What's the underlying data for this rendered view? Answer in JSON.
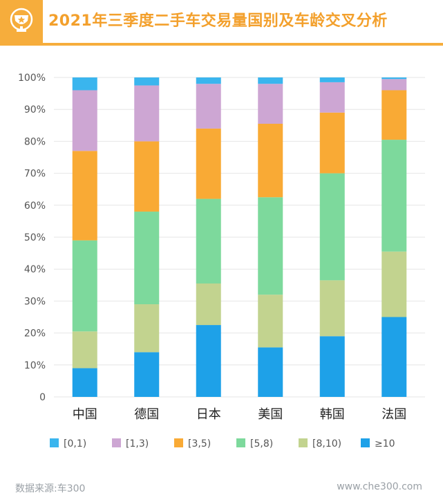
{
  "header": {
    "title": "2021年三季度二手车交易量国别及车龄交叉分析",
    "icon": "trophy-icon"
  },
  "footer": {
    "source": "数据来源:车300",
    "url": "www.che300.com"
  },
  "colors": {
    "accent": "#f6ad3c",
    "series": [
      "#3ab5ee",
      "#cda6d3",
      "#f9aa35",
      "#7dd99c",
      "#c2d38f",
      "#1ea1e8"
    ]
  },
  "chart_data": {
    "type": "bar",
    "stacked": true,
    "categories": [
      "中国",
      "德国",
      "日本",
      "美国",
      "韩国",
      "法国"
    ],
    "series": [
      {
        "name": "≥10",
        "values": [
          9,
          14,
          22.5,
          15.5,
          19,
          25
        ]
      },
      {
        "name": "[8,10)",
        "values": [
          11.5,
          15,
          13,
          16.5,
          17.5,
          20.5
        ]
      },
      {
        "name": "[5,8)",
        "values": [
          28.5,
          29,
          26.5,
          30.5,
          33.5,
          35
        ]
      },
      {
        "name": "[3,5)",
        "values": [
          28,
          22,
          22,
          23,
          19,
          15.5
        ]
      },
      {
        "name": "[1,3)",
        "values": [
          19,
          17.5,
          14,
          12.5,
          9.5,
          3.5
        ]
      },
      {
        "name": "[0,1)",
        "values": [
          4,
          2.5,
          2,
          2,
          1.5,
          0.5
        ]
      }
    ],
    "legend_order": [
      "[0,1)",
      "[1,3)",
      "[3,5)",
      "[5,8)",
      "[8,10)",
      "≥10"
    ],
    "ylim": [
      0,
      100
    ],
    "yticks": [
      "0",
      "10%",
      "20%",
      "30%",
      "40%",
      "50%",
      "60%",
      "70%",
      "80%",
      "90%",
      "100%"
    ],
    "grid": true,
    "legend_position": "bottom"
  }
}
